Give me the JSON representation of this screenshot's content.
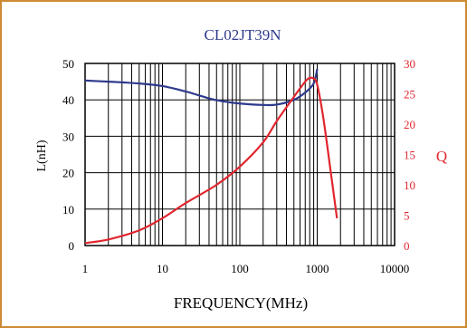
{
  "chart_data": {
    "type": "line",
    "title": "CL02JT39N",
    "xlabel": "FREQUENCY(MHz)",
    "ylabel_left": "L(nH)",
    "ylabel_right": "Q",
    "x_scale": "log",
    "xlim": [
      1,
      10000
    ],
    "ylim_left": [
      0,
      50
    ],
    "ylim_right": [
      0,
      30
    ],
    "x_ticks": [
      "1",
      "10",
      "100",
      "1000",
      "10000"
    ],
    "y_ticks_left": [
      "0",
      "10",
      "20",
      "30",
      "40",
      "50"
    ],
    "y_ticks_right": [
      "0",
      "5",
      "10",
      "15",
      "20",
      "25",
      "30"
    ],
    "grid": true,
    "colors": {
      "L": "#2e3a8c",
      "Q": "#e0262e",
      "frame": "#cc8a33",
      "title": "#2e3a8c"
    },
    "series": [
      {
        "axis": "left",
        "x": [
          1,
          2,
          3,
          5,
          10,
          20,
          30,
          50,
          100,
          200,
          300,
          500,
          700,
          900,
          1000
        ],
        "y": [
          45.3,
          45.0,
          44.8,
          44.5,
          43.8,
          42.3,
          41.2,
          39.9,
          39.0,
          38.6,
          38.7,
          40.0,
          42.0,
          44.5,
          48.5
        ]
      },
      {
        "axis": "right",
        "x": [
          1,
          2,
          5,
          10,
          20,
          50,
          100,
          200,
          300,
          500,
          700,
          800,
          900,
          1000,
          1200,
          1500,
          1800
        ],
        "y": [
          0.4,
          1.0,
          2.5,
          4.5,
          7.0,
          10.0,
          13.0,
          17.0,
          20.5,
          24.5,
          27.0,
          27.6,
          27.5,
          26.5,
          21.0,
          12.0,
          4.5
        ]
      }
    ]
  }
}
